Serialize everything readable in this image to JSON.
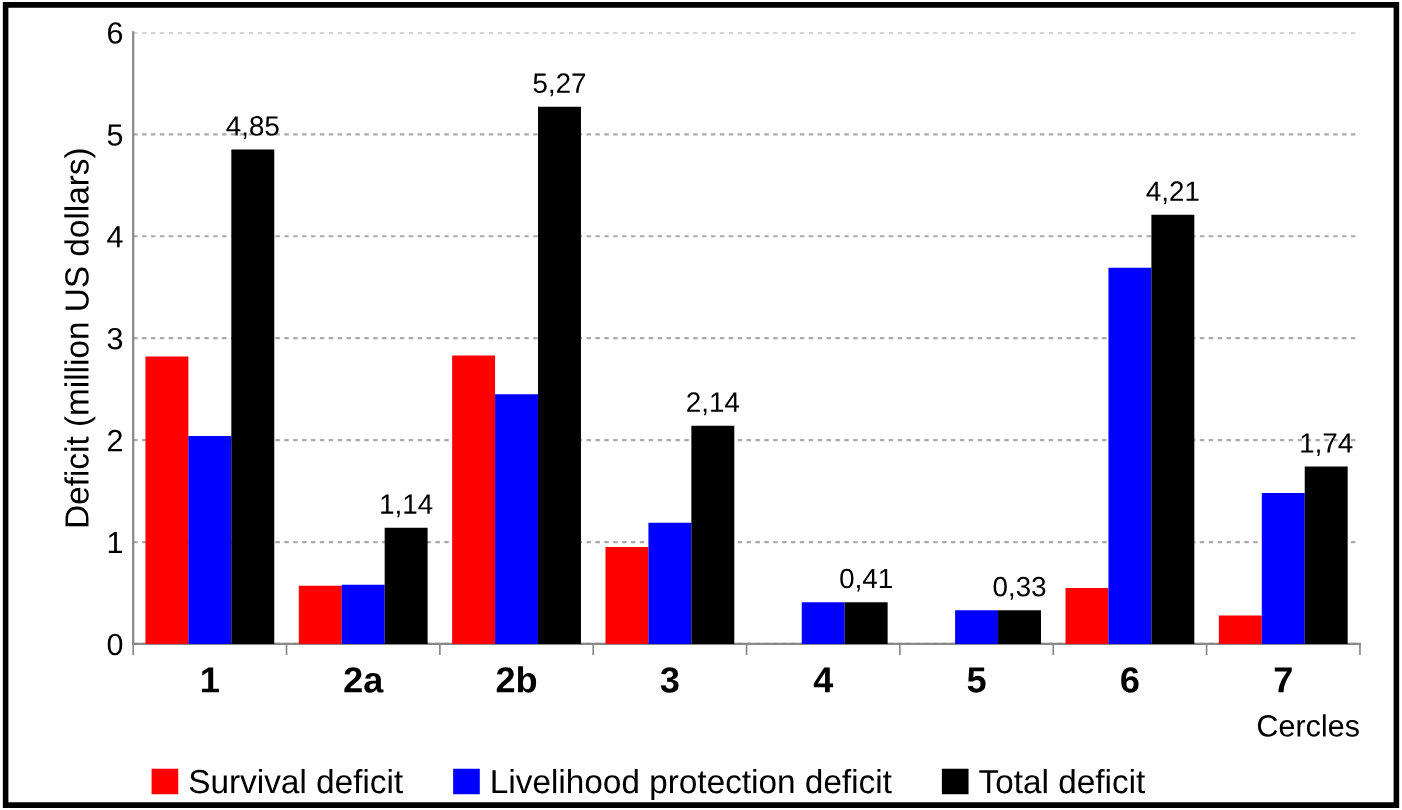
{
  "chart_data": {
    "type": "bar",
    "ylabel": "Deficit (million US dollars)",
    "xlabel": "Cercles",
    "categories": [
      "1",
      "2a",
      "2b",
      "3",
      "4",
      "5",
      "6",
      "7"
    ],
    "series": [
      {
        "name": "Survival deficit",
        "color": "#ff0000",
        "values": [
          2.82,
          0.57,
          2.83,
          0.95,
          null,
          null,
          0.55,
          0.28
        ]
      },
      {
        "name": "Livelihood protection deficit",
        "color": "#0000ff",
        "values": [
          2.04,
          0.58,
          2.45,
          1.19,
          0.41,
          0.33,
          3.69,
          1.48
        ]
      },
      {
        "name": "Total deficit",
        "color": "#000000",
        "values": [
          4.85,
          1.14,
          5.27,
          2.14,
          0.41,
          0.33,
          4.21,
          1.74
        ],
        "value_labels": [
          "4,85",
          "1,14",
          "5,27",
          "2,14",
          "0,41",
          "0,33",
          "4,21",
          "1,74"
        ]
      }
    ],
    "ylim": [
      0,
      6
    ],
    "yticks": [
      0,
      1,
      2,
      3,
      4,
      5,
      6
    ],
    "grid": "y",
    "legend": "bottom"
  }
}
